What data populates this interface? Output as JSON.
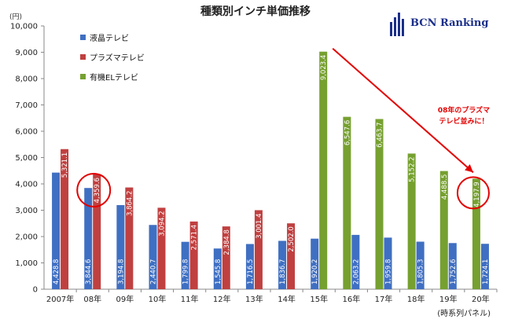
{
  "title": "種類別インチ単価推移",
  "unit_label": "(円)",
  "footnote": "(時系列パネル)",
  "logo_text": "BCN Ranking",
  "callout_text": [
    "08年のプラズマ",
    "テレビ並みに！"
  ],
  "colors": {
    "lcd": "#3f6fc2",
    "plasma": "#c04040",
    "el": "#76a030",
    "annotation": "#e30000",
    "logo": "#1b2f8a"
  },
  "chart_data": {
    "type": "bar",
    "title": "種類別インチ単価推移",
    "ylabel": "(円)",
    "ylim": [
      0,
      10000
    ],
    "yticks": [
      "0",
      "1,000",
      "2,000",
      "3,000",
      "4,000",
      "5,000",
      "6,000",
      "7,000",
      "8,000",
      "9,000",
      "10,000"
    ],
    "categories": [
      "2007年",
      "08年",
      "09年",
      "10年",
      "11年",
      "12年",
      "13年",
      "14年",
      "15年",
      "16年",
      "17年",
      "18年",
      "19年",
      "20年"
    ],
    "legend_position": "top-left",
    "grid": false,
    "series": [
      {
        "name": "液晶テレビ",
        "color_key": "lcd",
        "values": [
          4428.8,
          3844.6,
          3194.8,
          2440.7,
          1799.8,
          1545.8,
          1716.5,
          1836.7,
          1920.2,
          null,
          null,
          null,
          null,
          null
        ],
        "labels": [
          "4,428.8",
          "3,844.6",
          "3,194.8",
          "2,440.7",
          "1,799.8",
          "1,545.8",
          "1,716.5",
          "1,836.7",
          "1,920.2",
          "",
          "",
          "",
          "",
          ""
        ]
      },
      {
        "name": "プラズマテレビ",
        "color_key": "plasma",
        "values": [
          5321.1,
          4359.6,
          3864.2,
          3094.2,
          2571.4,
          2384.8,
          3001.4,
          2502.0,
          null,
          null,
          null,
          null,
          null,
          null
        ],
        "labels": [
          "5,321.1",
          "4,359.6",
          "3,864.2",
          "3,094.2",
          "2,571.4",
          "2,384.8",
          "3,001.4",
          "2,502.0",
          "",
          "",
          "",
          "",
          "",
          ""
        ]
      },
      {
        "name": "有機ELテレビ",
        "color_key": "el",
        "values": [
          null,
          null,
          null,
          null,
          null,
          null,
          null,
          null,
          9023.4,
          6547.6,
          6463.7,
          5152.2,
          4488.5,
          4197.9
        ],
        "labels": [
          "",
          "",
          "",
          "",
          "",
          "",
          "",
          "",
          "9,023.4",
          "6,547.6",
          "6,463.7",
          "5,152.2",
          "4,488.5",
          "4,197.9"
        ]
      },
      {
        "name": "",
        "color_key": "lcd",
        "values": [
          null,
          null,
          null,
          null,
          null,
          null,
          null,
          null,
          null,
          2063.2,
          1959.8,
          1805.3,
          1752.6,
          1724.1
        ],
        "labels": [
          "",
          "",
          "",
          "",
          "",
          "",
          "",
          "",
          "",
          "2,063.2",
          "1,959.8",
          "1,805.3",
          "1,752.6",
          "1,724.1"
        ]
      }
    ],
    "annotations": [
      {
        "type": "circle",
        "target": "08年 プラズマテレビ 4,359.6"
      },
      {
        "type": "circle",
        "target": "20年 有機ELテレビ 4,197.9"
      },
      {
        "type": "arrow",
        "from": "15年 有機ELテレビ",
        "to": "20年 有機ELテレビ",
        "text": "08年のプラズマテレビ並みに！"
      }
    ]
  }
}
